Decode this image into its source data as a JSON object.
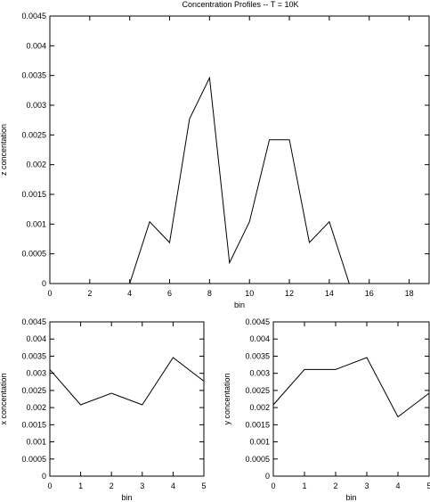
{
  "chart_data": [
    {
      "type": "line",
      "title": "Concentration Profiles -- T = 10K",
      "xlabel": "bin",
      "ylabel": "z concentation",
      "xlim": [
        0,
        19.0
      ],
      "ylim": [
        0,
        0.0045
      ],
      "xticks": [
        "0",
        "2",
        "4",
        "6",
        "8",
        "10",
        "12",
        "14",
        "16",
        "18"
      ],
      "yticks": [
        "0",
        "0.0005",
        "0.001",
        "0.0015",
        "0.002",
        "0.0025",
        "0.003",
        "0.0035",
        "0.004",
        "0.0045"
      ],
      "grid": false,
      "x": [
        0,
        4,
        5,
        6,
        7,
        8,
        9,
        10,
        11,
        12,
        13,
        14,
        15,
        19
      ],
      "y": [
        0,
        0,
        0.00104,
        0.00069,
        0.00277,
        0.00346,
        0.00035,
        0.00104,
        0.00242,
        0.00242,
        0.00069,
        0.00104,
        0,
        0
      ]
    },
    {
      "type": "line",
      "title": "",
      "xlabel": "bin",
      "ylabel": "x concentation",
      "xlim": [
        0,
        5
      ],
      "ylim": [
        0,
        0.0045
      ],
      "xticks": [
        "0",
        "1",
        "2",
        "3",
        "4",
        "5"
      ],
      "yticks": [
        "0",
        "0.0005",
        "0.001",
        "0.0015",
        "0.002",
        "0.0025",
        "0.003",
        "0.0035",
        "0.004",
        "0.0045"
      ],
      "grid": false,
      "x": [
        0,
        1,
        2,
        3,
        4,
        5
      ],
      "y": [
        0.00311,
        0.00208,
        0.00242,
        0.00208,
        0.00346,
        0.00277
      ]
    },
    {
      "type": "line",
      "title": "",
      "xlabel": "bin",
      "ylabel": "y concentation",
      "xlim": [
        0,
        5
      ],
      "ylim": [
        0,
        0.0045
      ],
      "xticks": [
        "0",
        "1",
        "2",
        "3",
        "4",
        "5"
      ],
      "yticks": [
        "0",
        "0.0005",
        "0.001",
        "0.0015",
        "0.002",
        "0.0025",
        "0.003",
        "0.0035",
        "0.004",
        "0.0045"
      ],
      "grid": false,
      "x": [
        0,
        1,
        2,
        3,
        4,
        5
      ],
      "y": [
        0.00208,
        0.00311,
        0.00311,
        0.00346,
        0.00173,
        0.00242
      ]
    }
  ]
}
